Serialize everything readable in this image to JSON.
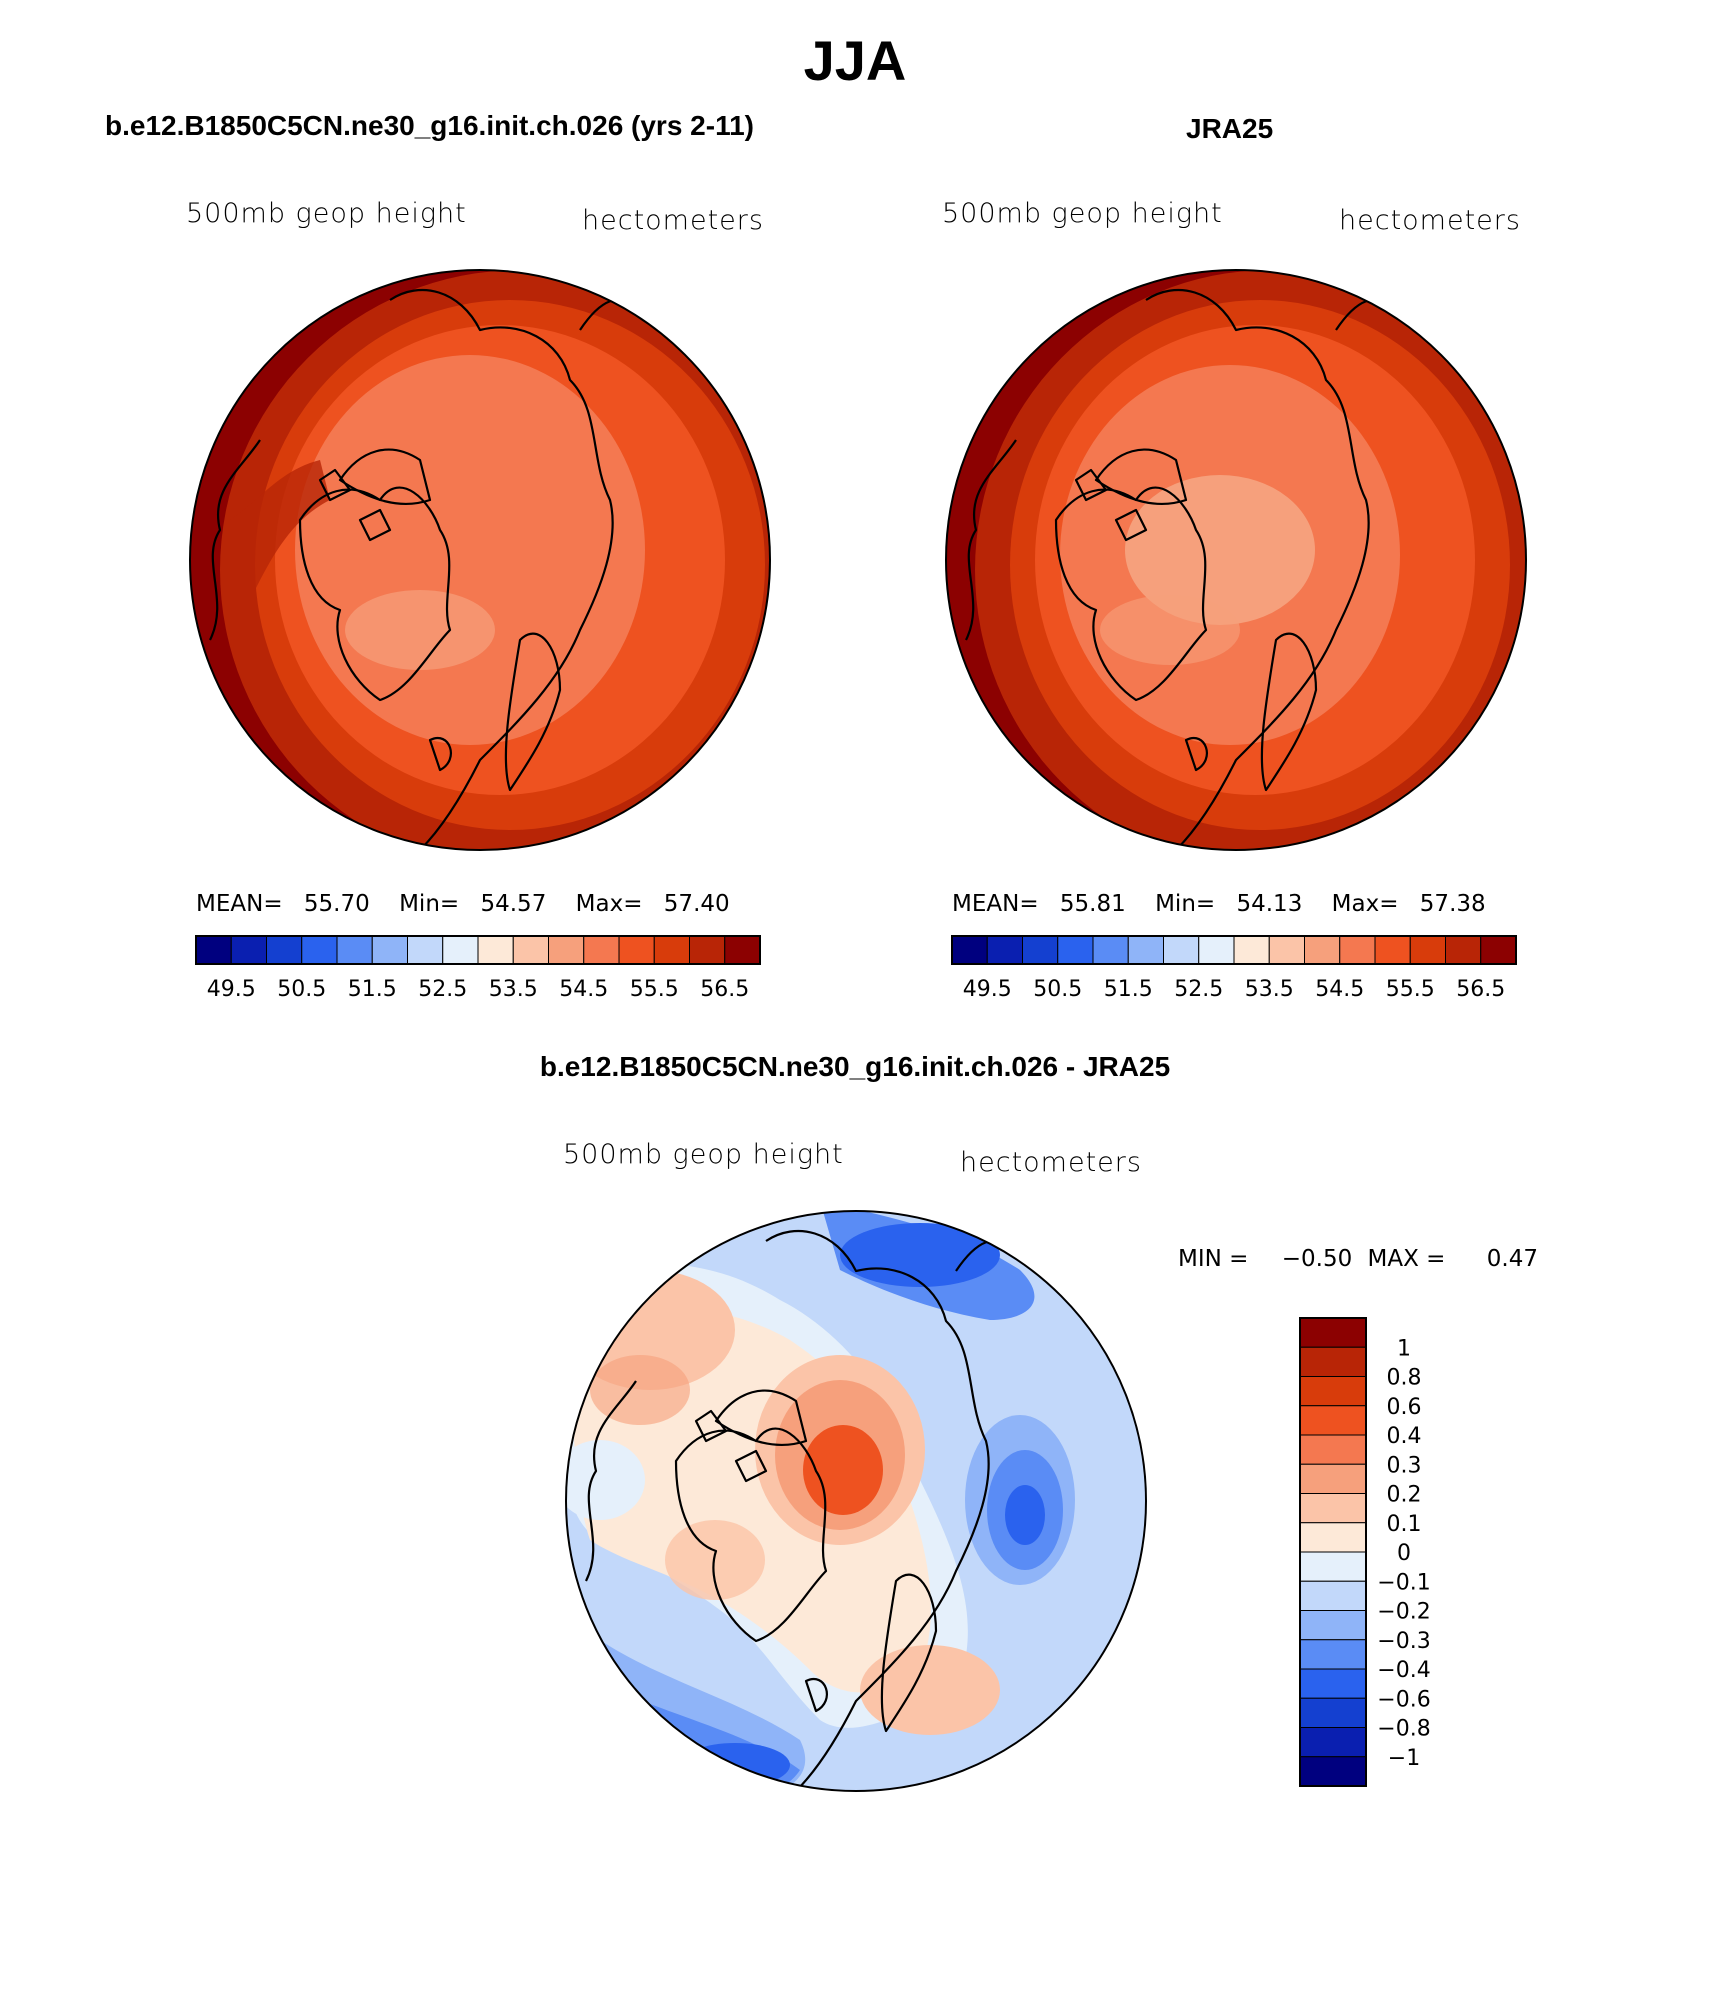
{
  "figure": {
    "title": "JJA"
  },
  "panels": [
    {
      "title": "b.e12.B1850C5CN.ne30_g16.init.ch.026 (yrs 2-11)",
      "left_label": "500mb geop height",
      "right_label": "hectometers",
      "stats": {
        "mean_label": "MEAN=",
        "mean": "55.70",
        "min_label": "Min=",
        "min": "54.57",
        "max_label": "Max=",
        "max": "57.40"
      }
    },
    {
      "title": "JRA25",
      "left_label": "500mb geop height",
      "right_label": "hectometers",
      "stats": {
        "mean_label": "MEAN=",
        "mean": "55.81",
        "min_label": "Min=",
        "min": "54.13",
        "max_label": "Max=",
        "max": "57.38"
      }
    },
    {
      "title": "b.e12.B1850C5CN.ne30_g16.init.ch.026 - JRA25",
      "left_label": "500mb geop height",
      "right_label": "hectometers",
      "minmax": {
        "min_label": "MIN =",
        "min": "−0.50",
        "max_label": "MAX =",
        "max": "0.47"
      }
    }
  ],
  "colorbars": {
    "height": {
      "colors": [
        "#00007f",
        "#0a1fb0",
        "#1440d0",
        "#2a62ee",
        "#5a8cf5",
        "#8fb4f8",
        "#c2d8fa",
        "#e5f0fb",
        "#fde9d8",
        "#fbc4a8",
        "#f6a07c",
        "#f47850",
        "#ee5220",
        "#d83c0b",
        "#b82506",
        "#8c0101"
      ],
      "tick_labels": [
        "49.5",
        "50.5",
        "51.5",
        "52.5",
        "53.5",
        "54.5",
        "55.5",
        "56.5"
      ]
    },
    "difference": {
      "colors": [
        "#8c0101",
        "#b82506",
        "#d83c0b",
        "#ee5220",
        "#f47850",
        "#f6a07c",
        "#fbc4a8",
        "#fde9d8",
        "#e5f0fb",
        "#c2d8fa",
        "#8fb4f8",
        "#5a8cf5",
        "#2a62ee",
        "#1440d0",
        "#0a1fb0",
        "#00007f"
      ],
      "tick_labels": [
        "1",
        "0.8",
        "0.6",
        "0.4",
        "0.3",
        "0.2",
        "0.1",
        "0",
        "−0.1",
        "−0.2",
        "−0.3",
        "−0.4",
        "−0.6",
        "−0.8",
        "−1"
      ]
    }
  }
}
